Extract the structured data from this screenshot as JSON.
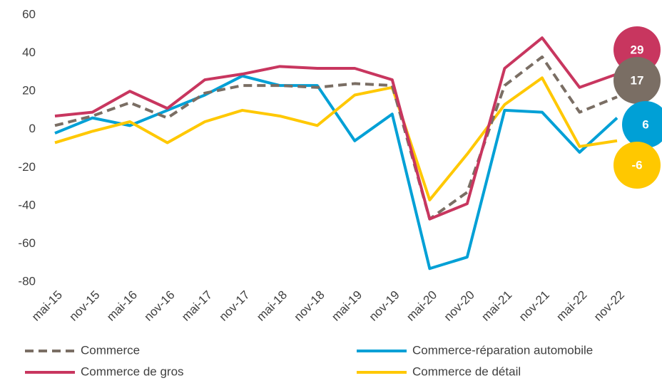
{
  "chart_data": {
    "type": "line",
    "categories": [
      "mai-15",
      "nov-15",
      "mai-16",
      "nov-16",
      "mai-17",
      "nov-17",
      "mai-18",
      "nov-18",
      "mai-19",
      "nov-19",
      "mai-20",
      "nov-20",
      "mai-21",
      "nov-21",
      "mai-22",
      "nov-22"
    ],
    "series": [
      {
        "name": "Commerce",
        "color": "#7a6e64",
        "dash": true,
        "values": [
          2,
          7,
          14,
          6,
          19,
          23,
          23,
          22,
          24,
          23,
          -47,
          -33,
          23,
          38,
          9,
          17
        ]
      },
      {
        "name": "Commerce-réparation automobile",
        "color": "#00a0d6",
        "dash": false,
        "values": [
          -2,
          6,
          2,
          10,
          18,
          28,
          23,
          23,
          -6,
          8,
          -73,
          -67,
          10,
          9,
          -12,
          6
        ]
      },
      {
        "name": "Commerce de gros",
        "color": "#c8365f",
        "dash": false,
        "values": [
          7,
          9,
          20,
          11,
          26,
          29,
          33,
          32,
          32,
          26,
          -47,
          -39,
          32,
          48,
          22,
          29
        ]
      },
      {
        "name": "Commerce de détail",
        "color": "#ffc800",
        "dash": false,
        "values": [
          -7,
          -1,
          4,
          -7,
          4,
          10,
          7,
          2,
          18,
          22,
          -37,
          -13,
          13,
          27,
          -9,
          -6
        ]
      }
    ],
    "ylim": [
      -80,
      60
    ],
    "yticks": [
      -80,
      -60,
      -40,
      -20,
      0,
      20,
      40,
      60
    ],
    "grid": false
  }
}
